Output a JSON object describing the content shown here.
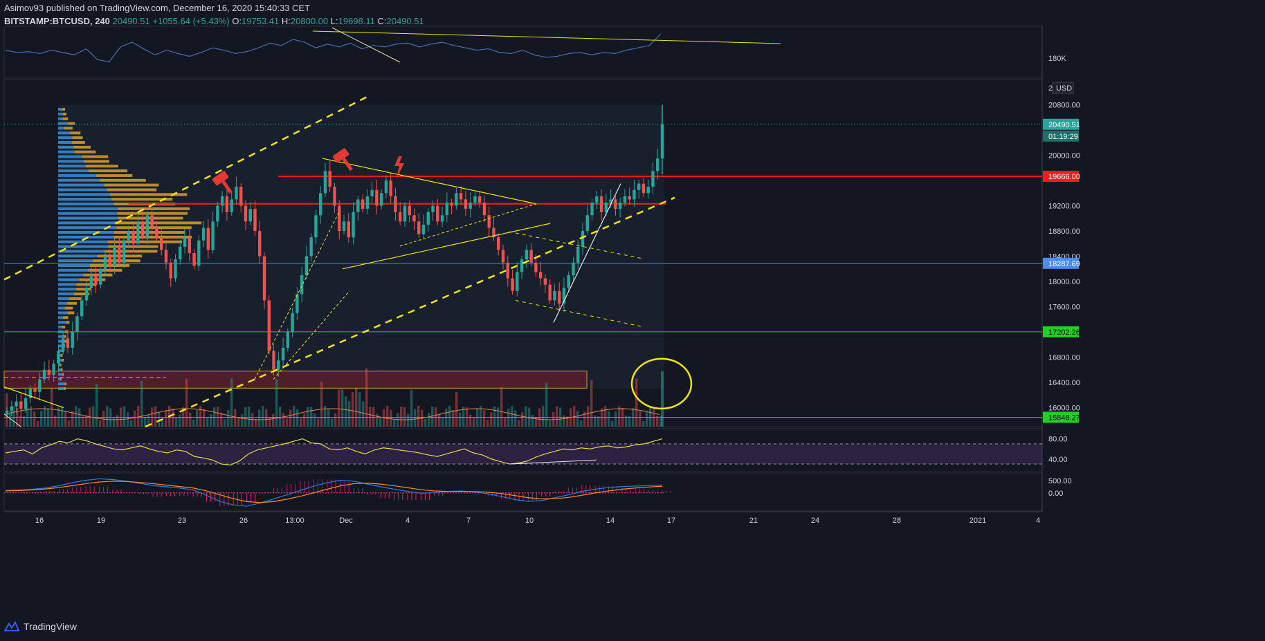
{
  "header": {
    "publisher_line": "Asimov93 published on TradingView.com, December 16, 2020 15:40:33 CET",
    "symbol": "BITSTAMP:BTCUSD, 240",
    "last": "20490.51",
    "change": "+1055.64 (+5.43%)",
    "open_label": "O:",
    "open": "19753.41",
    "high_label": "H:",
    "high": "20800.00",
    "low_label": "L:",
    "low": "19698.11",
    "close_label": "C:",
    "close": "20490.51"
  },
  "footer": {
    "brand": "TradingView"
  },
  "colors": {
    "background": "#131722",
    "up": "#26a69a",
    "down": "#ef5350",
    "annotation_yellow": "#f5e50c",
    "resistance_red": "#ff1a1a",
    "support_green": "#1fd21f",
    "support_blue": "#4a8cf0",
    "obv_line": "#4a6bb5",
    "rsi_line": "#e8d84a",
    "macd_line": "#2a7be0",
    "signal_line": "#ff8a2a"
  },
  "chart_data": [
    {
      "type": "line",
      "panel": "obv",
      "y_ticks": [
        "180K"
      ],
      "series": [
        {
          "values": [
            0.55,
            0.5,
            0.52,
            0.48,
            0.55,
            0.5,
            0.45,
            0.58,
            0.35,
            0.3,
            0.62,
            0.72,
            0.58,
            0.45,
            0.55,
            0.48,
            0.42,
            0.5,
            0.6,
            0.55,
            0.48,
            0.52,
            0.6,
            0.7,
            0.65,
            0.78,
            0.72,
            0.6,
            0.68,
            0.62,
            0.7,
            0.58,
            0.65,
            0.62,
            0.68,
            0.7,
            0.62,
            0.68,
            0.72,
            0.65,
            0.6,
            0.55,
            0.58,
            0.5,
            0.48,
            0.55,
            0.45,
            0.4,
            0.42,
            0.48,
            0.5,
            0.45,
            0.5,
            0.48,
            0.55,
            0.6,
            0.65,
            0.9
          ]
        }
      ]
    },
    {
      "type": "candlestick",
      "panel": "price",
      "symbol": "BITSTAMP:BTCUSD",
      "interval": "240",
      "x_ticks": [
        "16",
        "19",
        "23",
        "26",
        "13:00",
        "Dec",
        "4",
        "7",
        "10",
        "14",
        "17",
        "21",
        "24",
        "28",
        "2021",
        "4"
      ],
      "y_ticks": [
        "20800.00",
        "20000.00",
        "19200.00",
        "18800.00",
        "18400.00",
        "18000.00",
        "17600.00",
        "16800.00",
        "16400.00",
        "16000.00"
      ],
      "y_range": [
        15700,
        21200
      ],
      "currency": "USD",
      "price_labels": [
        {
          "value": "20490.51",
          "role": "last"
        },
        {
          "value": "01:19:29",
          "role": "countdown"
        },
        {
          "value": "19666.00",
          "role": "red-line"
        },
        {
          "value": "18287.69",
          "role": "blue-line"
        },
        {
          "value": "17202.26",
          "role": "green-line"
        },
        {
          "value": "15848.27",
          "role": "green-line"
        }
      ],
      "horizontal_lines": [
        {
          "price": 19666.0,
          "color": "red"
        },
        {
          "price": 19230.0,
          "color": "red"
        },
        {
          "price": 18287.69,
          "color": "blue"
        },
        {
          "price": 17202.26,
          "color": "green"
        },
        {
          "price": 15848.27,
          "color": "green"
        }
      ],
      "closes": [
        15950,
        16020,
        16100,
        15980,
        16150,
        16300,
        16250,
        16450,
        16600,
        16520,
        16700,
        16900,
        17100,
        16950,
        17200,
        17450,
        17700,
        17900,
        18100,
        17950,
        18200,
        18400,
        18250,
        18550,
        18300,
        18650,
        18800,
        18600,
        18950,
        18700,
        19050,
        18850,
        18700,
        18500,
        18300,
        18050,
        18350,
        18550,
        18700,
        18450,
        18250,
        18650,
        18850,
        18500,
        18950,
        19200,
        19350,
        19100,
        19300,
        19500,
        19200,
        18950,
        19150,
        18800,
        18400,
        17700,
        16900,
        16600,
        16750,
        16950,
        17200,
        17500,
        17800,
        18100,
        18400,
        18700,
        19050,
        19400,
        19750,
        19500,
        19200,
        18800,
        18950,
        18700,
        19100,
        19300,
        19150,
        19350,
        19450,
        19200,
        19400,
        19600,
        19350,
        19100,
        18950,
        19200,
        19050,
        18950,
        18750,
        18900,
        19100,
        19200,
        18950,
        19050,
        19250,
        19200,
        19400,
        19300,
        19150,
        19250,
        19350,
        19250,
        19050,
        18850,
        18700,
        18500,
        18300,
        18050,
        17850,
        18150,
        18350,
        18500,
        18300,
        18150,
        18050,
        17950,
        17700,
        17850,
        17650,
        17900,
        18100,
        18300,
        18550,
        18800,
        19050,
        19250,
        19350,
        19100,
        19250,
        19300,
        19150,
        19250,
        19350,
        19300,
        19450,
        19550,
        19400,
        19500,
        19750,
        19950,
        20490.51
      ]
    },
    {
      "type": "line",
      "panel": "rsi",
      "y_ticks": [
        "80.00",
        "40.00"
      ],
      "y_range": [
        15,
        100
      ],
      "bands": [
        70,
        30
      ],
      "series": [
        {
          "values": [
            52,
            55,
            58,
            50,
            62,
            68,
            75,
            72,
            80,
            76,
            70,
            65,
            60,
            58,
            62,
            66,
            60,
            55,
            52,
            58,
            55,
            45,
            42,
            38,
            30,
            28,
            36,
            50,
            58,
            62,
            66,
            70,
            75,
            80,
            72,
            70,
            60,
            58,
            62,
            55,
            50,
            58,
            62,
            60,
            57,
            55,
            52,
            48,
            45,
            50,
            55,
            60,
            52,
            48,
            40,
            35,
            30,
            32,
            36,
            44,
            50,
            55,
            60,
            58,
            62,
            60,
            64,
            66,
            62,
            64,
            68,
            70,
            75,
            80
          ]
        }
      ]
    },
    {
      "type": "line",
      "panel": "macd",
      "y_ticks": [
        "500.00",
        "0.00"
      ],
      "y_range": [
        -720,
        820
      ],
      "series": [
        {
          "values": [
            100,
            120,
            150,
            200,
            300,
            420,
            520,
            580,
            550,
            480,
            400,
            300,
            250,
            200,
            120,
            -100,
            -350,
            -500,
            -550,
            -420,
            -250,
            -80,
            100,
            280,
            420,
            520,
            480,
            360,
            250,
            150,
            60,
            -20,
            20,
            60,
            80,
            40,
            -40,
            -150,
            -280,
            -350,
            -320,
            -200,
            -80,
            60,
            150,
            220,
            260,
            280,
            300,
            320
          ]
        },
        {
          "values": [
            80,
            95,
            120,
            160,
            220,
            300,
            380,
            450,
            480,
            470,
            430,
            380,
            320,
            260,
            200,
            80,
            -80,
            -240,
            -360,
            -400,
            -360,
            -260,
            -140,
            0,
            150,
            290,
            380,
            400,
            360,
            290,
            210,
            130,
            80,
            60,
            60,
            55,
            30,
            -30,
            -110,
            -200,
            -250,
            -240,
            -190,
            -100,
            0,
            80,
            150,
            200,
            240,
            270
          ]
        }
      ]
    }
  ]
}
